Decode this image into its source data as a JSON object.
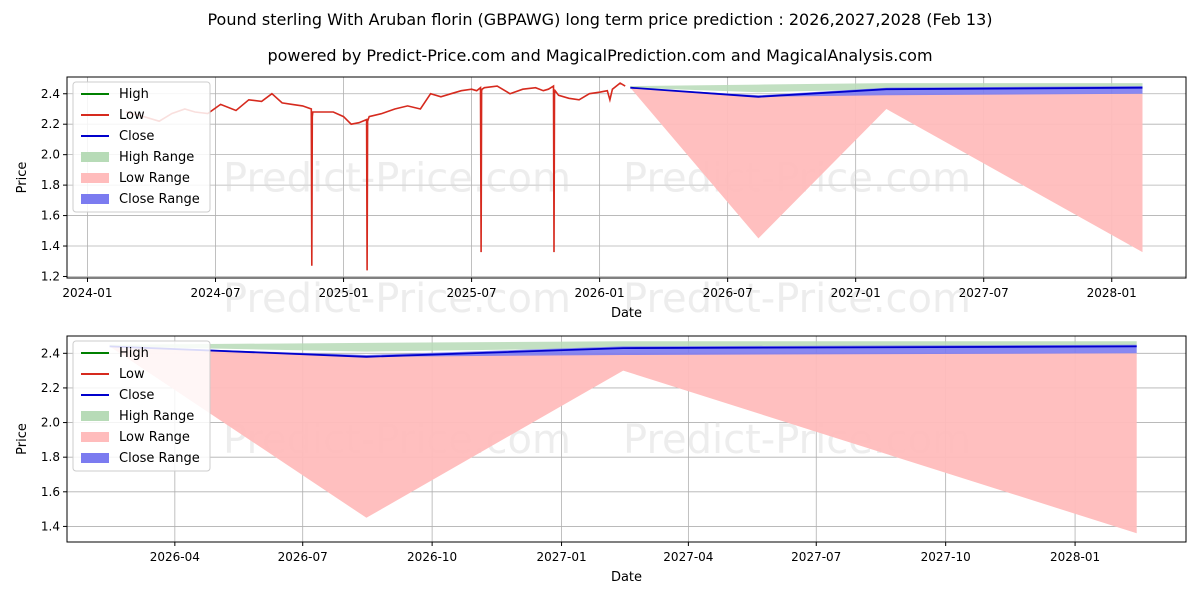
{
  "title": "Pound sterling With Aruban florin (GBPAWG) long term price prediction : 2026,2027,2028 (Feb 13)",
  "subtitle": "powered by Predict-Price.com and MagicalPrediction.com and MagicalAnalysis.com",
  "watermark": "Predict-Price.com",
  "colors": {
    "high": "#008000",
    "low": "#d62a1e",
    "close": "#0000cc",
    "high_range": "#b7dbb7",
    "low_range": "#ffbcbc",
    "close_range": "#7b7bf0"
  },
  "legend": [
    "High",
    "Low",
    "Close",
    "High Range",
    "Low Range",
    "Close Range"
  ],
  "chart_data": [
    {
      "type": "line",
      "panel": "top",
      "xlabel": "Date",
      "ylabel": "Price",
      "xlim": [
        2023.92,
        2028.29
      ],
      "ylim": [
        1.19,
        2.51
      ],
      "x_ticks": [
        2024.0,
        2024.5,
        2025.0,
        2025.5,
        2026.0,
        2026.5,
        2027.0,
        2027.5,
        2028.0
      ],
      "x_tick_labels": [
        "2024-01",
        "2024-07",
        "2025-01",
        "2025-07",
        "2026-01",
        "2026-07",
        "2027-01",
        "2027-07",
        "2028-01"
      ],
      "y_ticks": [
        1.2,
        1.4,
        1.6,
        1.8,
        2.0,
        2.2,
        2.4
      ],
      "y_tick_labels": [
        "1.2",
        "1.4",
        "1.6",
        "1.8",
        "2.0",
        "2.2",
        "2.4"
      ],
      "grid": true,
      "legend_position": "top-left",
      "series": [
        {
          "name": "Low",
          "kind": "history",
          "x": [
            2024.15,
            2024.22,
            2024.28,
            2024.33,
            2024.38,
            2024.42,
            2024.47,
            2024.52,
            2024.58,
            2024.63,
            2024.68,
            2024.72,
            2024.76,
            2024.8,
            2024.84,
            2024.874,
            2024.876,
            2024.878,
            2024.88,
            2024.92,
            2024.96,
            2025.0,
            2025.03,
            2025.06,
            2025.09,
            2025.092,
            2025.094,
            2025.096,
            2025.1,
            2025.15,
            2025.2,
            2025.25,
            2025.3,
            2025.34,
            2025.38,
            2025.42,
            2025.46,
            2025.5,
            2025.52,
            2025.535,
            2025.537,
            2025.539,
            2025.541,
            2025.55,
            2025.6,
            2025.65,
            2025.7,
            2025.75,
            2025.78,
            2025.8,
            2025.82,
            2025.822,
            2025.824,
            2025.826,
            2025.84,
            2025.88,
            2025.92,
            2025.96,
            2026.0,
            2026.03,
            2026.04,
            2026.05,
            2026.08,
            2026.1
          ],
          "y": [
            2.28,
            2.25,
            2.22,
            2.27,
            2.3,
            2.28,
            2.27,
            2.33,
            2.29,
            2.36,
            2.35,
            2.4,
            2.34,
            2.33,
            2.32,
            2.3,
            1.27,
            2.25,
            2.28,
            2.28,
            2.28,
            2.25,
            2.2,
            2.21,
            2.23,
            1.24,
            2.22,
            2.23,
            2.25,
            2.27,
            2.3,
            2.32,
            2.3,
            2.4,
            2.38,
            2.4,
            2.42,
            2.43,
            2.42,
            2.44,
            1.36,
            2.42,
            2.43,
            2.44,
            2.45,
            2.4,
            2.43,
            2.44,
            2.42,
            2.43,
            2.45,
            1.36,
            2.4,
            2.42,
            2.39,
            2.37,
            2.36,
            2.4,
            2.41,
            2.42,
            2.36,
            2.43,
            2.47,
            2.45
          ]
        },
        {
          "name": "Close",
          "kind": "prediction",
          "x": [
            2026.12,
            2026.62,
            2027.12,
            2028.12
          ],
          "y": [
            2.44,
            2.38,
            2.43,
            2.44
          ]
        },
        {
          "name": "High Range",
          "kind": "band",
          "x": [
            2026.12,
            2026.62,
            2027.12,
            2028.12
          ],
          "lower": [
            2.44,
            2.41,
            2.43,
            2.44
          ],
          "upper": [
            2.45,
            2.46,
            2.47,
            2.47
          ]
        },
        {
          "name": "Low Range",
          "kind": "band",
          "x": [
            2026.12,
            2026.62,
            2027.12,
            2028.12
          ],
          "lower": [
            2.44,
            1.45,
            2.3,
            1.36
          ],
          "upper": [
            2.44,
            2.38,
            2.4,
            2.4
          ]
        },
        {
          "name": "Close Range",
          "kind": "band",
          "x": [
            2026.12,
            2026.62,
            2027.12,
            2028.12
          ],
          "lower": [
            2.44,
            2.38,
            2.39,
            2.4
          ],
          "upper": [
            2.44,
            2.39,
            2.44,
            2.45
          ]
        }
      ]
    },
    {
      "type": "line",
      "panel": "bottom",
      "xlabel": "Date",
      "ylabel": "Price",
      "xlim": [
        2026.037,
        2028.216
      ],
      "ylim": [
        1.31,
        2.5
      ],
      "x_ticks": [
        2026.247,
        2026.496,
        2026.748,
        2027.0,
        2027.247,
        2027.496,
        2027.748,
        2028.0
      ],
      "x_tick_labels": [
        "2026-04",
        "2026-07",
        "2026-10",
        "2027-01",
        "2027-04",
        "2027-07",
        "2027-10",
        "2028-01"
      ],
      "y_ticks": [
        1.4,
        1.6,
        1.8,
        2.0,
        2.2,
        2.4
      ],
      "y_tick_labels": [
        "1.4",
        "1.6",
        "1.8",
        "2.0",
        "2.2",
        "2.4"
      ],
      "grid": true,
      "legend_position": "top-left",
      "series": [
        {
          "name": "Close",
          "kind": "prediction",
          "x": [
            2026.12,
            2026.62,
            2027.12,
            2028.12
          ],
          "y": [
            2.44,
            2.38,
            2.43,
            2.44
          ]
        },
        {
          "name": "High Range",
          "kind": "band",
          "x": [
            2026.12,
            2026.62,
            2027.12,
            2028.12
          ],
          "lower": [
            2.44,
            2.41,
            2.43,
            2.44
          ],
          "upper": [
            2.45,
            2.46,
            2.47,
            2.47
          ]
        },
        {
          "name": "Low Range",
          "kind": "band",
          "x": [
            2026.12,
            2026.62,
            2027.12,
            2028.12
          ],
          "lower": [
            2.44,
            1.45,
            2.3,
            1.36
          ],
          "upper": [
            2.44,
            2.38,
            2.4,
            2.4
          ]
        },
        {
          "name": "Close Range",
          "kind": "band",
          "x": [
            2026.12,
            2026.62,
            2027.12,
            2028.12
          ],
          "lower": [
            2.44,
            2.38,
            2.39,
            2.4
          ],
          "upper": [
            2.44,
            2.39,
            2.44,
            2.45
          ]
        }
      ]
    }
  ]
}
